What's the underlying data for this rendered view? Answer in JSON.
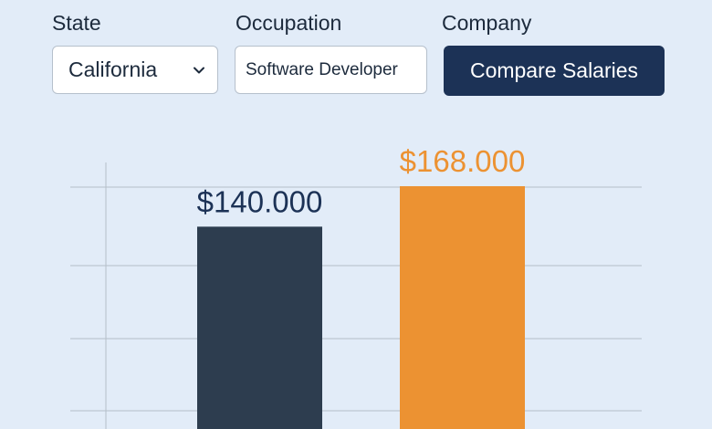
{
  "form": {
    "state": {
      "label": "State",
      "value": "California",
      "icon": "chevron-down-icon"
    },
    "occupation": {
      "label": "Occupation",
      "value": "Software Developer"
    },
    "company": {
      "label": "Company",
      "button_label": "Compare Salaries"
    }
  },
  "colors": {
    "background": "#e2ecf8",
    "button": "#1c3256",
    "bar_state": "#2d3d4f",
    "bar_company": "#ec9232",
    "gridline": "#b4bec8"
  },
  "chart_data": {
    "type": "bar",
    "categories": [
      "",
      ""
    ],
    "values": [
      140000,
      168000
    ],
    "data_labels": [
      "$140.000",
      "$168.000"
    ],
    "colors": [
      "#2d3d4f",
      "#ec9232"
    ],
    "title": "",
    "xlabel": "",
    "ylabel": "",
    "grid": true
  }
}
